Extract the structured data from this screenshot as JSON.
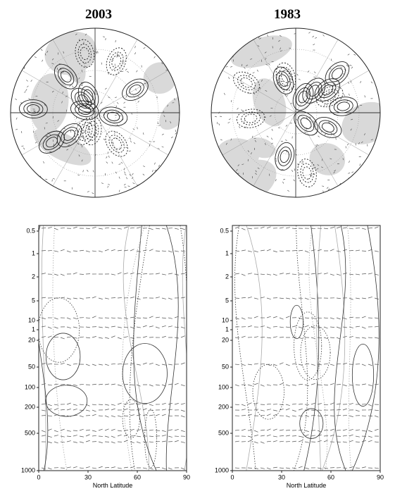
{
  "panels": [
    {
      "title": "2003"
    },
    {
      "title": "1983"
    }
  ],
  "pressure_labels": [
    "0.5",
    "1",
    "2",
    "5",
    "10",
    "1",
    "20",
    "50",
    "100",
    "200",
    "500",
    "1000"
  ],
  "latitude_labels": [
    "0",
    "30",
    "60",
    "90"
  ],
  "x_axis_label": "North Latitude"
}
